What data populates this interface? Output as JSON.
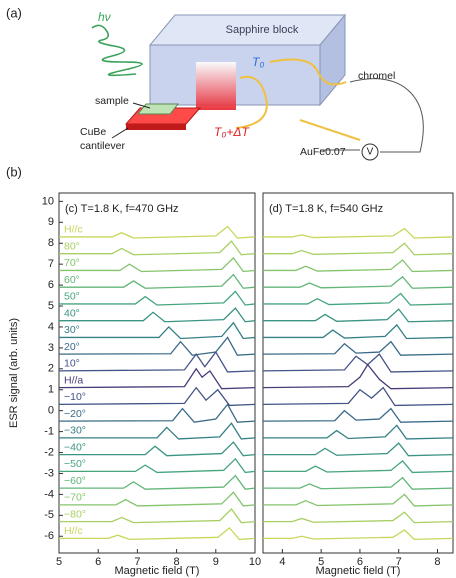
{
  "figure": {
    "panel_a_label": "(a)",
    "panel_b_label": "(b)",
    "diagram": {
      "light": "hν",
      "block": "Sapphire block",
      "t0": "T₀",
      "wire1": "chromel",
      "sample": "sample",
      "t0_dt": "T₀+ΔT",
      "wire2": "AuFe0.07",
      "meter": "V",
      "cantilever_1": "CuBe",
      "cantilever_2": "cantilever"
    }
  },
  "chart_data": [
    {
      "type": "line",
      "title": "(c) T=1.8 K, f=470 GHz",
      "x_label": "Magnetic field (T)",
      "y_label": "ESR signal (arb. units)",
      "xlim": [
        5,
        10
      ],
      "xticks": [
        5,
        6,
        7,
        8,
        9,
        10
      ],
      "ylim": [
        -6.8,
        10.4
      ],
      "yticks": [
        -6,
        -5,
        -4,
        -3,
        -2,
        -1,
        0,
        1,
        2,
        3,
        4,
        5,
        6,
        7,
        8,
        9,
        10
      ],
      "series": [
        {
          "name": "H//c",
          "color": "#c9d65a",
          "x": [
            5,
            6.35,
            6.6,
            6.9,
            9.0,
            9.3,
            9.55,
            10
          ],
          "values": [
            8.3,
            8.3,
            8.5,
            8.25,
            8.35,
            8.8,
            8.25,
            8.3
          ]
        },
        {
          "name": "80°",
          "color": "#a8cf62",
          "x": [
            5,
            6.35,
            6.6,
            6.9,
            9.1,
            9.4,
            9.65,
            10
          ],
          "values": [
            7.5,
            7.5,
            7.75,
            7.45,
            7.55,
            8.1,
            7.45,
            7.5
          ]
        },
        {
          "name": "70°",
          "color": "#85c46d",
          "x": [
            5,
            6.55,
            6.8,
            7.1,
            9.15,
            9.45,
            9.7,
            10
          ],
          "values": [
            6.7,
            6.7,
            7.0,
            6.65,
            6.75,
            7.3,
            6.65,
            6.7
          ]
        },
        {
          "name": "60°",
          "color": "#62b677",
          "x": [
            5,
            6.65,
            6.9,
            7.2,
            9.15,
            9.45,
            9.7,
            10
          ],
          "values": [
            5.9,
            5.9,
            6.2,
            5.85,
            5.95,
            6.5,
            5.85,
            5.9
          ]
        },
        {
          "name": "50°",
          "color": "#47a57e",
          "x": [
            5,
            6.95,
            7.2,
            7.5,
            9.2,
            9.5,
            9.75,
            10
          ],
          "values": [
            5.1,
            5.1,
            5.45,
            5.05,
            5.15,
            5.7,
            5.05,
            5.1
          ]
        },
        {
          "name": "40°",
          "color": "#3a9383",
          "x": [
            5,
            7.15,
            7.4,
            7.7,
            9.2,
            9.5,
            9.75,
            10
          ],
          "values": [
            4.3,
            4.3,
            4.7,
            4.25,
            4.35,
            4.9,
            4.25,
            4.3
          ]
        },
        {
          "name": "30°",
          "color": "#357f86",
          "x": [
            5,
            7.55,
            7.8,
            8.1,
            9.15,
            9.45,
            9.7,
            10
          ],
          "values": [
            3.5,
            3.5,
            4.0,
            3.45,
            3.55,
            4.2,
            3.45,
            3.5
          ]
        },
        {
          "name": "20°",
          "color": "#3a6a88",
          "x": [
            5,
            7.85,
            8.1,
            8.4,
            9.0,
            9.3,
            9.55,
            10
          ],
          "values": [
            2.7,
            2.72,
            3.3,
            2.65,
            2.8,
            3.5,
            2.65,
            2.7
          ]
        },
        {
          "name": "10°",
          "color": "#455488",
          "x": [
            5,
            8.2,
            8.5,
            8.72,
            9.0,
            9.3,
            10
          ],
          "values": [
            1.9,
            1.95,
            2.7,
            2.1,
            2.8,
            1.85,
            1.9
          ]
        },
        {
          "name": "H//a",
          "color": "#4a3a78",
          "x": [
            5,
            8.2,
            8.5,
            8.65,
            8.85,
            9.15,
            10
          ],
          "values": [
            1.1,
            1.15,
            2.0,
            1.6,
            1.9,
            1.05,
            1.1
          ]
        },
        {
          "name": "−10°",
          "color": "#455488",
          "x": [
            5,
            8.2,
            8.5,
            8.75,
            9.05,
            9.35,
            10
          ],
          "values": [
            0.3,
            0.35,
            1.1,
            0.5,
            1.0,
            0.25,
            0.3
          ]
        },
        {
          "name": "−20°",
          "color": "#3a6a88",
          "x": [
            5,
            7.9,
            8.15,
            8.45,
            9.0,
            9.3,
            9.55,
            10
          ],
          "values": [
            -0.5,
            -0.48,
            0.1,
            -0.55,
            -0.4,
            0.3,
            -0.55,
            -0.5
          ]
        },
        {
          "name": "−30°",
          "color": "#357f86",
          "x": [
            5,
            7.5,
            7.75,
            8.05,
            9.1,
            9.4,
            9.65,
            10
          ],
          "values": [
            -1.3,
            -1.3,
            -0.8,
            -1.35,
            -1.25,
            -0.6,
            -1.35,
            -1.3
          ]
        },
        {
          "name": "−40°",
          "color": "#3a9383",
          "x": [
            5,
            7.2,
            7.45,
            7.75,
            9.15,
            9.45,
            9.7,
            10
          ],
          "values": [
            -2.1,
            -2.1,
            -1.7,
            -2.15,
            -2.05,
            -1.5,
            -2.15,
            -2.1
          ]
        },
        {
          "name": "−50°",
          "color": "#47a57e",
          "x": [
            5,
            6.95,
            7.2,
            7.5,
            9.2,
            9.5,
            9.75,
            10
          ],
          "values": [
            -2.9,
            -2.9,
            -2.6,
            -2.95,
            -2.85,
            -2.3,
            -2.95,
            -2.9
          ]
        },
        {
          "name": "−60°",
          "color": "#62b677",
          "x": [
            5,
            6.65,
            6.9,
            7.2,
            9.2,
            9.5,
            9.75,
            10
          ],
          "values": [
            -3.7,
            -3.7,
            -3.4,
            -3.75,
            -3.65,
            -3.1,
            -3.75,
            -3.7
          ]
        },
        {
          "name": "−70°",
          "color": "#85c46d",
          "x": [
            5,
            6.45,
            6.7,
            7.0,
            9.15,
            9.45,
            9.7,
            10
          ],
          "values": [
            -4.5,
            -4.5,
            -4.25,
            -4.55,
            -4.45,
            -3.9,
            -4.55,
            -4.5
          ]
        },
        {
          "name": "−80°",
          "color": "#a8cf62",
          "x": [
            5,
            6.35,
            6.6,
            6.9,
            9.1,
            9.4,
            9.65,
            10
          ],
          "values": [
            -5.3,
            -5.3,
            -5.1,
            -5.35,
            -5.25,
            -4.7,
            -5.35,
            -5.3
          ]
        },
        {
          "name": "H//c",
          "color": "#c9d65a",
          "x": [
            5,
            6.25,
            6.5,
            6.8,
            9.05,
            9.35,
            9.6,
            10
          ],
          "values": [
            -6.1,
            -6.1,
            -5.95,
            -6.15,
            -6.05,
            -5.6,
            -6.15,
            -6.1
          ]
        }
      ]
    },
    {
      "type": "line",
      "title": "(d) T=1.8 K, f=540 GHz",
      "x_label": "Magnetic field (T)",
      "xlim": [
        3.5,
        8.4
      ],
      "xticks": [
        4,
        5,
        6,
        7,
        8
      ],
      "ylim": [
        -6.8,
        10.4
      ],
      "series": [
        {
          "color": "#c9d65a",
          "x": [
            3.5,
            4.25,
            4.5,
            4.8,
            6.85,
            7.15,
            7.4,
            8.4
          ],
          "values": [
            8.3,
            8.3,
            8.4,
            8.27,
            8.35,
            8.7,
            8.25,
            8.3
          ]
        },
        {
          "color": "#a8cf62",
          "x": [
            3.5,
            4.25,
            4.5,
            4.8,
            6.85,
            7.15,
            7.4,
            8.4
          ],
          "values": [
            7.5,
            7.5,
            7.65,
            7.47,
            7.55,
            8.0,
            7.45,
            7.5
          ]
        },
        {
          "color": "#85c46d",
          "x": [
            3.5,
            4.35,
            4.6,
            4.9,
            6.8,
            7.1,
            7.35,
            8.4
          ],
          "values": [
            6.7,
            6.7,
            6.9,
            6.67,
            6.75,
            7.2,
            6.65,
            6.7
          ]
        },
        {
          "color": "#62b677",
          "x": [
            3.5,
            4.45,
            4.7,
            5.0,
            6.8,
            7.1,
            7.35,
            8.4
          ],
          "values": [
            5.9,
            5.9,
            6.1,
            5.87,
            5.95,
            6.4,
            5.85,
            5.9
          ]
        },
        {
          "color": "#47a57e",
          "x": [
            3.5,
            4.65,
            4.9,
            5.2,
            6.75,
            7.05,
            7.3,
            8.4
          ],
          "values": [
            5.1,
            5.1,
            5.35,
            5.07,
            5.15,
            5.6,
            5.05,
            5.1
          ]
        },
        {
          "color": "#3a9383",
          "x": [
            3.5,
            4.85,
            5.1,
            5.4,
            6.7,
            7.0,
            7.25,
            8.4
          ],
          "values": [
            4.3,
            4.3,
            4.6,
            4.27,
            4.35,
            4.85,
            4.25,
            4.3
          ]
        },
        {
          "color": "#357f86",
          "x": [
            3.5,
            5.05,
            5.3,
            5.6,
            6.65,
            6.95,
            7.2,
            8.4
          ],
          "values": [
            3.5,
            3.5,
            3.85,
            3.47,
            3.55,
            4.1,
            3.45,
            3.5
          ]
        },
        {
          "color": "#3a6a88",
          "x": [
            3.5,
            5.35,
            5.6,
            5.9,
            6.5,
            6.8,
            7.05,
            8.4
          ],
          "values": [
            2.7,
            2.72,
            3.2,
            2.75,
            2.8,
            3.3,
            2.65,
            2.7
          ]
        },
        {
          "color": "#455488",
          "x": [
            3.5,
            5.6,
            5.9,
            6.2,
            6.5,
            6.8,
            8.4
          ],
          "values": [
            1.9,
            1.95,
            2.6,
            2.2,
            2.7,
            1.85,
            1.9
          ]
        },
        {
          "color": "#4a3a78",
          "x": [
            3.5,
            5.7,
            6.0,
            6.2,
            6.5,
            6.8,
            8.4
          ],
          "values": [
            1.1,
            1.15,
            1.6,
            2.2,
            1.5,
            1.05,
            1.1
          ]
        },
        {
          "color": "#455488",
          "x": [
            3.5,
            5.7,
            6.0,
            6.3,
            6.6,
            6.9,
            8.4
          ],
          "values": [
            0.3,
            0.35,
            1.0,
            0.6,
            1.1,
            0.25,
            0.3
          ]
        },
        {
          "color": "#3a6a88",
          "x": [
            3.5,
            5.35,
            5.6,
            5.9,
            6.5,
            6.8,
            7.05,
            8.4
          ],
          "values": [
            -0.5,
            -0.48,
            0.0,
            -0.45,
            -0.4,
            0.1,
            -0.55,
            -0.5
          ]
        },
        {
          "color": "#357f86",
          "x": [
            3.5,
            5.15,
            5.4,
            5.7,
            6.65,
            6.95,
            7.2,
            8.4
          ],
          "values": [
            -1.3,
            -1.3,
            -0.95,
            -1.33,
            -1.25,
            -0.7,
            -1.35,
            -1.3
          ]
        },
        {
          "color": "#3a9383",
          "x": [
            3.5,
            4.85,
            5.1,
            5.4,
            6.7,
            7.0,
            7.25,
            8.4
          ],
          "values": [
            -2.1,
            -2.1,
            -1.8,
            -2.13,
            -2.05,
            -1.55,
            -2.15,
            -2.1
          ]
        },
        {
          "color": "#47a57e",
          "x": [
            3.5,
            4.6,
            4.85,
            5.15,
            6.8,
            7.1,
            7.35,
            8.4
          ],
          "values": [
            -2.9,
            -2.9,
            -2.65,
            -2.93,
            -2.85,
            -2.4,
            -2.95,
            -2.9
          ]
        },
        {
          "color": "#62b677",
          "x": [
            3.5,
            4.45,
            4.7,
            5.0,
            6.8,
            7.1,
            7.35,
            8.4
          ],
          "values": [
            -3.7,
            -3.7,
            -3.5,
            -3.73,
            -3.65,
            -3.2,
            -3.75,
            -3.7
          ]
        },
        {
          "color": "#85c46d",
          "x": [
            3.5,
            4.35,
            4.6,
            4.9,
            6.85,
            7.15,
            7.4,
            8.4
          ],
          "values": [
            -4.5,
            -4.5,
            -4.3,
            -4.53,
            -4.45,
            -4.0,
            -4.55,
            -4.5
          ]
        },
        {
          "color": "#a8cf62",
          "x": [
            3.5,
            4.25,
            4.5,
            4.8,
            6.85,
            7.15,
            7.4,
            8.4
          ],
          "values": [
            -5.3,
            -5.3,
            -5.15,
            -5.33,
            -5.25,
            -4.85,
            -5.35,
            -5.3
          ]
        },
        {
          "color": "#c9d65a",
          "x": [
            3.5,
            4.25,
            4.5,
            4.8,
            6.85,
            7.15,
            7.4,
            8.4
          ],
          "values": [
            -6.1,
            -6.1,
            -6.0,
            -6.13,
            -6.05,
            -5.7,
            -6.15,
            -6.1
          ]
        }
      ]
    }
  ]
}
